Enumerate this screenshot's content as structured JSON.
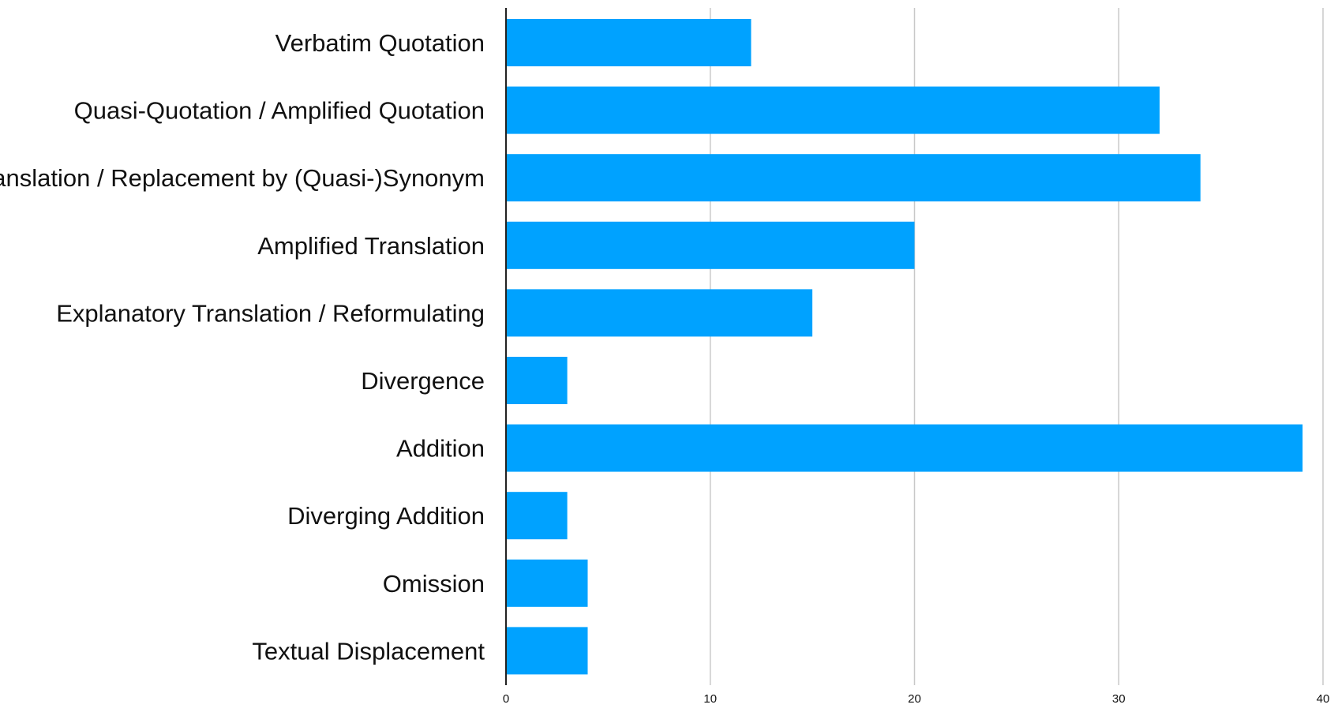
{
  "chart_data": {
    "type": "bar",
    "orientation": "horizontal",
    "title": "",
    "xlabel": "",
    "ylabel": "",
    "categories": [
      "Verbatim Quotation",
      "Quasi-Quotation / Amplified Quotation",
      "Translation / Replacement by (Quasi-)Synonym",
      "Amplified Translation",
      "Explanatory Translation / Reformulating",
      "Divergence",
      "Addition",
      "Diverging Addition",
      "Omission",
      "Textual Displacement"
    ],
    "values": [
      12,
      32,
      34,
      20,
      15,
      3,
      39,
      3,
      4,
      4
    ],
    "xlim": [
      0,
      40
    ],
    "xticks": [
      "0",
      "10",
      "20",
      "30",
      "40"
    ],
    "grid": "vertical",
    "legend": "none",
    "colors": {
      "bar": "#00a2ff",
      "grid": "#c8c8c8",
      "axis": "#222222",
      "text": "#111111"
    }
  }
}
